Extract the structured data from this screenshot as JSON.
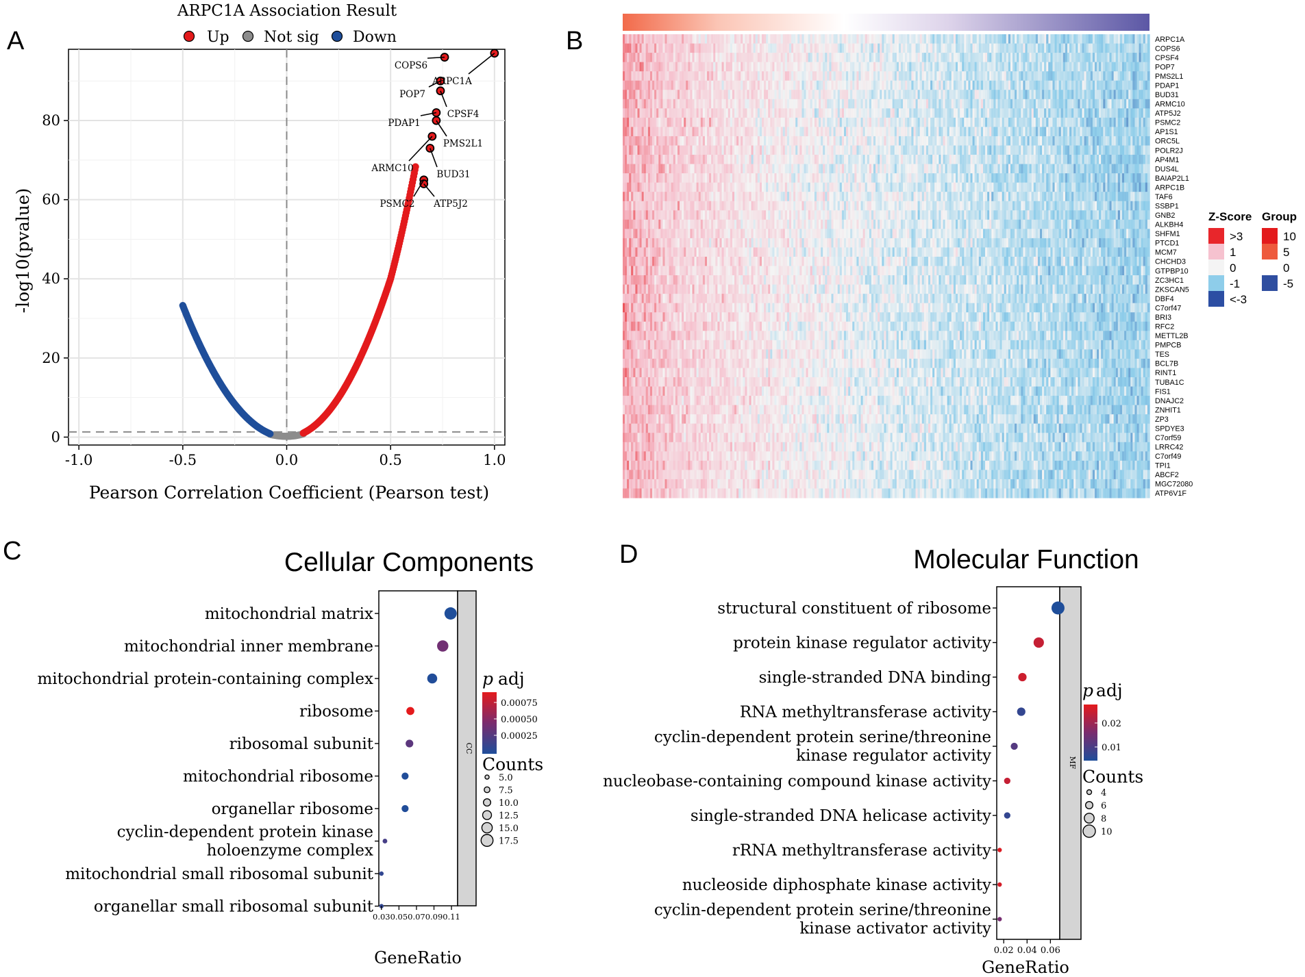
{
  "panels": {
    "a_letter": "A",
    "b_letter": "B",
    "c_letter": "C",
    "d_letter": "D"
  },
  "colors": {
    "up": "#e31a1c",
    "not_sig": "#8c8c8c",
    "down": "#1f4e9a",
    "heat_red": "#e8262b",
    "heat_pink": "#f6c2cf",
    "heat_white": "#f4f4f4",
    "heat_lightblue": "#8ecdea",
    "heat_blue": "#2c4ea3",
    "panel_grey": "#d4d4d4"
  },
  "chart_data": [
    {
      "type": "scatter",
      "panel": "A",
      "title": "ARPC1A Association Result",
      "xlabel": "Pearson Correlation Coefficient (Pearson test)",
      "ylabel": "-log10(pvalue)",
      "xlim": [
        -1.05,
        1.05
      ],
      "ylim": [
        -2,
        98
      ],
      "xticks": [
        -1.0,
        -0.5,
        0.0,
        0.5,
        1.0
      ],
      "xtick_labels": [
        "-1.0",
        "-0.5",
        "0.0",
        "0.5",
        "1.0"
      ],
      "yticks": [
        0,
        20,
        40,
        60,
        80
      ],
      "ytick_labels": [
        "0",
        "20",
        "40",
        "60",
        "80"
      ],
      "grid": true,
      "legend": {
        "placement": "top",
        "entries": [
          {
            "label": "Up",
            "color": "#e31a1c"
          },
          {
            "label": "Not sig",
            "color": "#8c8c8c"
          },
          {
            "label": "Down",
            "color": "#1f4e9a"
          }
        ]
      },
      "threshold_lines": {
        "x": 0.0,
        "y": 1.3
      },
      "curve": {
        "down_x_range": [
          -0.5,
          -0.08
        ],
        "up_x_range": [
          0.08,
          0.62
        ],
        "sig_cutoff_abs_r": 0.08
      },
      "labeled_points": [
        {
          "label": "ARPC1A",
          "x": 1.0,
          "y": 97
        },
        {
          "label": "COPS6",
          "x": 0.76,
          "y": 96
        },
        {
          "label": "POP7",
          "x": 0.74,
          "y": 90
        },
        {
          "label": "CPSF4",
          "x": 0.74,
          "y": 87.5
        },
        {
          "label": "PDAP1",
          "x": 0.72,
          "y": 82
        },
        {
          "label": "PMS2L1",
          "x": 0.72,
          "y": 80
        },
        {
          "label": "ARMC10",
          "x": 0.7,
          "y": 76
        },
        {
          "label": "BUD31",
          "x": 0.69,
          "y": 73
        },
        {
          "label": "PSMC2",
          "x": 0.66,
          "y": 65
        },
        {
          "label": "ATP5J2",
          "x": 0.66,
          "y": 64
        }
      ]
    },
    {
      "type": "heatmap",
      "panel": "B",
      "genes": [
        "ARPC1A",
        "COPS6",
        "CPSF4",
        "POP7",
        "PMS2L1",
        "PDAP1",
        "BUD31",
        "ARMC10",
        "ATP5J2",
        "PSMC2",
        "AP1S1",
        "ORC5L",
        "POLR2J",
        "AP4M1",
        "DUS4L",
        "BAIAP2L1",
        "ARPC1B",
        "TAF6",
        "SSBP1",
        "GNB2",
        "ALKBH4",
        "SHFM1",
        "PTCD1",
        "MCM7",
        "CHCHD3",
        "GTPBP10",
        "ZC3HC1",
        "ZKSCAN5",
        "DBF4",
        "C7orf47",
        "BRI3",
        "RFC2",
        "METTL2B",
        "PMPCB",
        "TES",
        "BCL7B",
        "RINT1",
        "TUBA1C",
        "FIS1",
        "DNAJC2",
        "ZNHIT1",
        "ZP3",
        "SPDYE3",
        "C7orf59",
        "LRRC42",
        "C7orf49",
        "TPI1",
        "ABCF2",
        "MGC72080",
        "ATP6V1F"
      ],
      "zscore_legend": {
        "title": "Z-Score",
        "labels": [
          ">3",
          "1",
          "0",
          "-1",
          "<-3"
        ]
      },
      "group_legend": {
        "title": "Group",
        "labels": [
          "10",
          "5",
          "0",
          "-5"
        ]
      }
    },
    {
      "type": "scatter",
      "panel": "C",
      "title": "Cellular Components",
      "xlabel": "GeneRatio",
      "facet_label": "CC",
      "xlim": [
        0.027,
        0.117
      ],
      "xticks": [
        0.03,
        0.05,
        0.07,
        0.09,
        0.11
      ],
      "xtick_labels": [
        "0.03",
        "0.05",
        "0.07",
        "0.09",
        "0.11"
      ],
      "terms": [
        {
          "label": "mitochondrial matrix",
          "ratio": 0.109,
          "p_adj": 1e-05,
          "count": 17
        },
        {
          "label": "mitochondrial inner membrane",
          "ratio": 0.1,
          "p_adj": 0.0004,
          "count": 15.5
        },
        {
          "label": "mitochondrial protein-containing complex",
          "ratio": 0.088,
          "p_adj": 2e-05,
          "count": 13.5
        },
        {
          "label": "ribosome",
          "ratio": 0.063,
          "p_adj": 0.00088,
          "count": 10.5
        },
        {
          "label": "ribosomal subunit",
          "ratio": 0.062,
          "p_adj": 0.0003,
          "count": 10
        },
        {
          "label": "mitochondrial ribosome",
          "ratio": 0.057,
          "p_adj": 2e-05,
          "count": 9
        },
        {
          "label": "organellar ribosome",
          "ratio": 0.057,
          "p_adj": 2e-05,
          "count": 9
        },
        {
          "label": "cyclin-dependent protein kinase holoenzyme complex",
          "ratio": 0.034,
          "p_adj": 0.0002,
          "count": 5.5
        },
        {
          "label": "mitochondrial small ribosomal subunit",
          "ratio": 0.03,
          "p_adj": 0.0001,
          "count": 5
        },
        {
          "label": "organellar small ribosomal subunit",
          "ratio": 0.03,
          "p_adj": 0.0001,
          "count": 5
        }
      ],
      "color_legend": {
        "title_p": "p",
        "title_rest": "adj",
        "ticks": [
          "0.00075",
          "0.00050",
          "0.00025"
        ],
        "range": [
          1e-05,
          0.00088
        ]
      },
      "size_legend": {
        "title": "Counts",
        "labels": [
          "5.0",
          "7.5",
          "10.0",
          "12.5",
          "15.0",
          "17.5"
        ],
        "values": [
          5,
          7.5,
          10,
          12.5,
          15,
          17.5
        ]
      }
    },
    {
      "type": "scatter",
      "panel": "D",
      "title": "Molecular Function",
      "xlabel": "GeneRatio",
      "facet_label": "MF",
      "xlim": [
        0.014,
        0.068
      ],
      "xticks": [
        0.02,
        0.04,
        0.06
      ],
      "xtick_labels": [
        "0.02",
        "0.04",
        "0.06"
      ],
      "terms": [
        {
          "label": "structural constituent of ribosome",
          "ratio": 0.0665,
          "p_adj": 0.001,
          "count": 10
        },
        {
          "label": "protein kinase regulator activity",
          "ratio": 0.05,
          "p_adj": 0.024,
          "count": 8
        },
        {
          "label": "single-stranded DNA binding",
          "ratio": 0.036,
          "p_adj": 0.025,
          "count": 6.5
        },
        {
          "label": "RNA methyltransferase activity",
          "ratio": 0.035,
          "p_adj": 0.004,
          "count": 6.5
        },
        {
          "label": "cyclin-dependent protein serine/threonine kinase regulator activity",
          "ratio": 0.029,
          "p_adj": 0.009,
          "count": 5.5
        },
        {
          "label": "nucleobase-containing compound kinase activity",
          "ratio": 0.023,
          "p_adj": 0.024,
          "count": 5
        },
        {
          "label": "single-stranded DNA helicase activity",
          "ratio": 0.023,
          "p_adj": 0.004,
          "count": 5
        },
        {
          "label": "rRNA methyltransferase activity",
          "ratio": 0.0165,
          "p_adj": 0.027,
          "count": 3.5
        },
        {
          "label": "nucleoside diphosphate kinase activity",
          "ratio": 0.0165,
          "p_adj": 0.026,
          "count": 3.5
        },
        {
          "label": "cyclin-dependent protein serine/threonine kinase activator activity",
          "ratio": 0.0165,
          "p_adj": 0.014,
          "count": 3.5
        }
      ],
      "color_legend": {
        "title_p": "p",
        "title_rest": "adj",
        "ticks": [
          "0.02",
          "0.01"
        ],
        "range": [
          0.001,
          0.028
        ]
      },
      "size_legend": {
        "title": "Counts",
        "labels": [
          "4",
          "6",
          "8",
          "10"
        ],
        "values": [
          4,
          6,
          8,
          10
        ]
      }
    }
  ]
}
